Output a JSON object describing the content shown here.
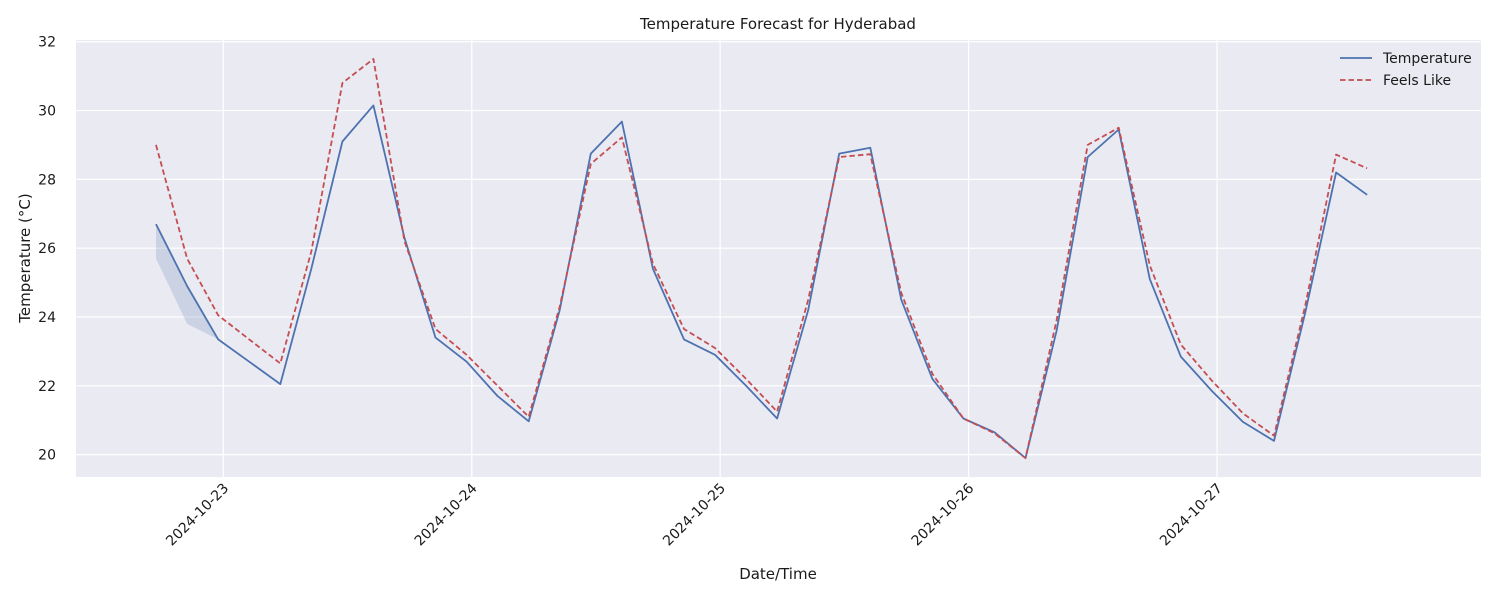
{
  "chart_data": {
    "type": "line",
    "title": "Temperature Forecast for Hyderabad",
    "xlabel": "Date/Time",
    "ylabel": "Temperature (°C)",
    "x": [
      "2024-10-22 17:30",
      "2024-10-22 20:30",
      "2024-10-22 23:30",
      "2024-10-23 02:30",
      "2024-10-23 05:30",
      "2024-10-23 08:30",
      "2024-10-23 11:30",
      "2024-10-23 14:30",
      "2024-10-23 17:30",
      "2024-10-23 20:30",
      "2024-10-23 23:30",
      "2024-10-24 02:30",
      "2024-10-24 05:30",
      "2024-10-24 08:30",
      "2024-10-24 11:30",
      "2024-10-24 14:30",
      "2024-10-24 17:30",
      "2024-10-24 20:30",
      "2024-10-24 23:30",
      "2024-10-25 02:30",
      "2024-10-25 05:30",
      "2024-10-25 08:30",
      "2024-10-25 11:30",
      "2024-10-25 14:30",
      "2024-10-25 17:30",
      "2024-10-25 20:30",
      "2024-10-25 23:30",
      "2024-10-26 02:30",
      "2024-10-26 05:30",
      "2024-10-26 08:30",
      "2024-10-26 11:30",
      "2024-10-26 14:30",
      "2024-10-26 17:30",
      "2024-10-26 20:30",
      "2024-10-26 23:30",
      "2024-10-27 02:30",
      "2024-10-27 05:30",
      "2024-10-27 08:30",
      "2024-10-27 11:30",
      "2024-10-27 14:30"
    ],
    "series": [
      {
        "name": "Temperature",
        "color": "#4c72b0",
        "style": "solid",
        "values": [
          26.7,
          24.9,
          23.35,
          22.7,
          22.05,
          25.4,
          29.1,
          30.15,
          26.3,
          23.4,
          22.7,
          21.7,
          20.97,
          24.2,
          28.75,
          29.68,
          25.4,
          23.35,
          22.9,
          22.0,
          21.05,
          24.2,
          28.75,
          28.92,
          24.5,
          22.2,
          21.05,
          20.65,
          19.9,
          23.6,
          28.65,
          29.45,
          25.1,
          22.85,
          21.85,
          20.95,
          20.4,
          24.1,
          28.2,
          27.55
        ]
      },
      {
        "name": "Feels Like",
        "color": "#c44e52",
        "style": "dashed",
        "values": [
          29.0,
          25.7,
          24.05,
          23.35,
          22.65,
          25.9,
          30.8,
          31.5,
          26.2,
          23.65,
          22.9,
          22.0,
          21.1,
          24.3,
          28.45,
          29.22,
          25.55,
          23.65,
          23.1,
          22.2,
          21.25,
          24.5,
          28.65,
          28.73,
          24.7,
          22.35,
          21.05,
          20.62,
          19.9,
          23.9,
          29.0,
          29.5,
          25.5,
          23.2,
          22.15,
          21.2,
          20.55,
          24.3,
          28.72,
          28.32
        ]
      }
    ],
    "band": {
      "series": "Temperature",
      "x": [
        "2024-10-22 17:30",
        "2024-10-22 20:30",
        "2024-10-22 23:30"
      ],
      "lower": [
        25.7,
        23.8,
        23.35
      ]
    },
    "x_ticks": [
      "2024-10-23",
      "2024-10-24",
      "2024-10-25",
      "2024-10-26",
      "2024-10-27"
    ],
    "y_ticks": [
      20,
      22,
      24,
      26,
      28,
      30,
      32
    ],
    "ylim": [
      19.35,
      32.05
    ],
    "xlim": [
      "2024-10-22 09:46",
      "2024-10-28 01:30"
    ],
    "grid": true,
    "legend_position": "top-right"
  }
}
